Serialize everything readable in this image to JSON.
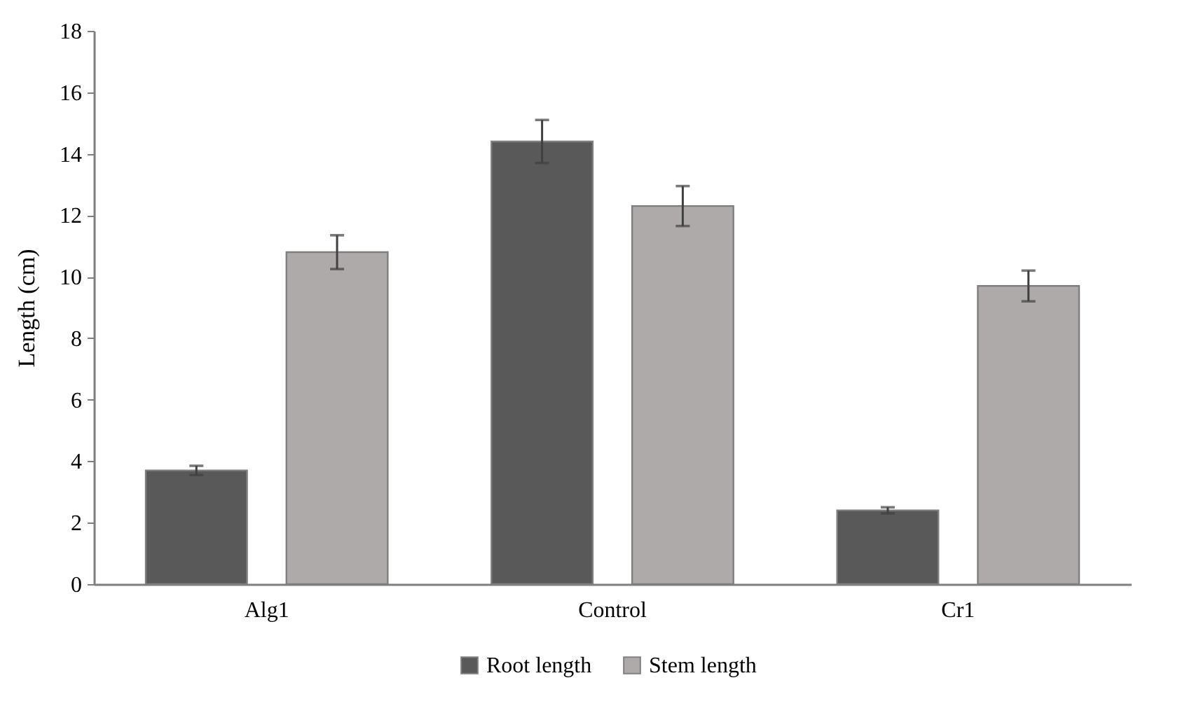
{
  "chart_data": {
    "type": "bar",
    "ylabel": "Length (cm)",
    "categories": [
      "Alg1",
      "Control",
      "Cr1"
    ],
    "series": [
      {
        "name": "Root length",
        "color": "#595959",
        "values": [
          3.7,
          14.4,
          2.4
        ],
        "errors": [
          0.15,
          0.7,
          0.1
        ]
      },
      {
        "name": "Stem length",
        "color": "#aeaaaa",
        "values": [
          10.8,
          12.3,
          9.7
        ],
        "errors": [
          0.55,
          0.65,
          0.5
        ]
      }
    ],
    "ylim": [
      0,
      18
    ],
    "yticks": [
      0,
      2,
      4,
      6,
      8,
      10,
      12,
      14,
      16,
      18
    ],
    "grid": false,
    "legend": "bottom"
  }
}
